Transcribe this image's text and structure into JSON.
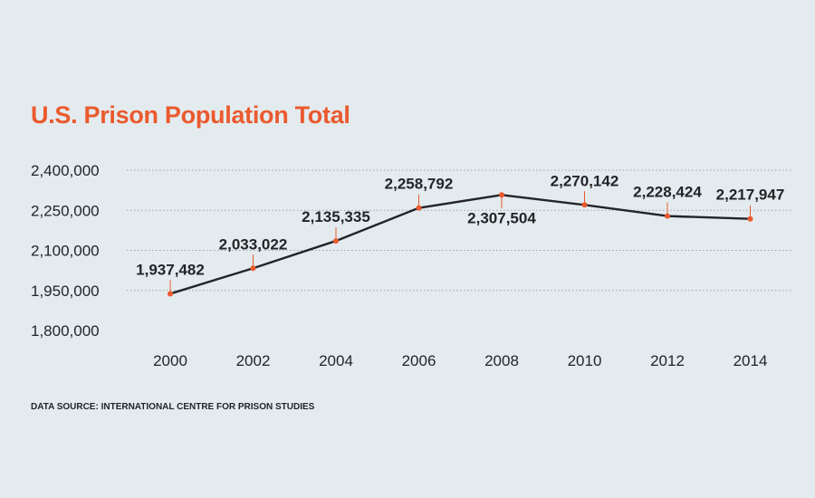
{
  "title": "U.S. Prison Population Total",
  "source": "DATA SOURCE: INTERNATIONAL CENTRE FOR PRISON STUDIES",
  "colors": {
    "accent": "#ea5a2e",
    "line": "#222428",
    "grid": "#9aa3a8",
    "background": "#e4ebee"
  },
  "chart_data": {
    "type": "line",
    "title": "U.S. Prison Population Total",
    "xlabel": "",
    "ylabel": "",
    "x": [
      "2000",
      "2002",
      "2004",
      "2006",
      "2008",
      "2010",
      "2012",
      "2014"
    ],
    "series": [
      {
        "values": [
          1937482,
          2033022,
          2135335,
          2258792,
          2307504,
          2270142,
          2228424,
          2217947
        ],
        "labels": [
          "1,937,482",
          "2,033,022",
          "2,135,335",
          "2,258,792",
          "2,307,504",
          "2,270,142",
          "2,228,424",
          "2,217,947"
        ]
      }
    ],
    "y_ticks": [
      1800000,
      1950000,
      2100000,
      2250000,
      2400000
    ],
    "y_tick_labels": [
      "1,800,000",
      "1,950,000",
      "2,100,000",
      "2,250,000",
      "2,400,000"
    ],
    "ylim": [
      1800000,
      2400000
    ],
    "grid": "horizontal dotted",
    "legend": "none"
  }
}
